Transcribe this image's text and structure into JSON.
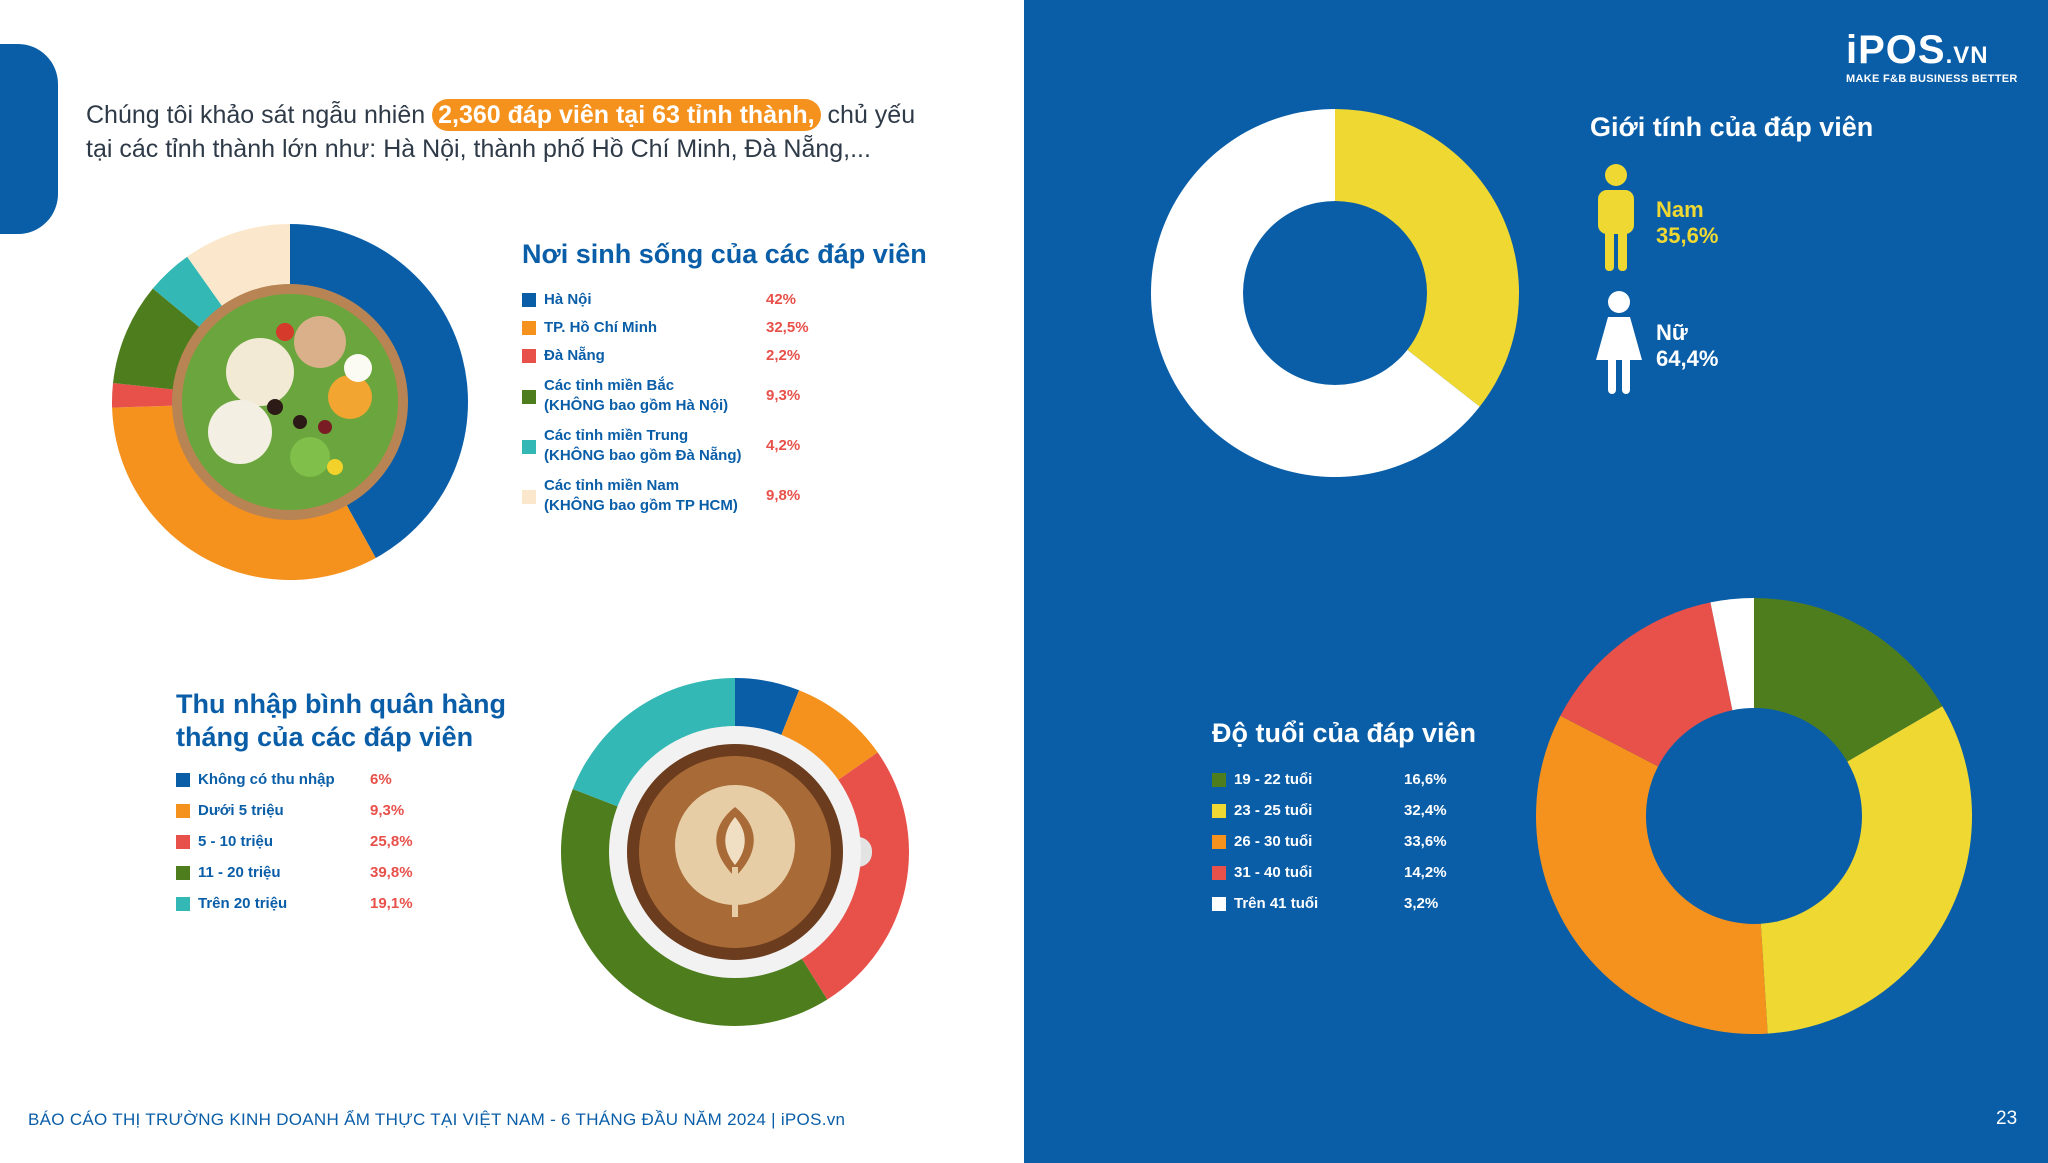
{
  "intro": {
    "before": "Chúng tôi khảo sát ngẫu nhiên ",
    "highlight": "2,360 đáp viên tại 63 tỉnh thành,",
    "after": " chủ yếu tại các tỉnh thành lớn như: Hà Nội, thành phố Hồ Chí Minh, Đà Nẵng,..."
  },
  "logo": {
    "brand": "iPOS",
    "suffix": ".VN",
    "tagline": "MAKE F&B BUSINESS BETTER"
  },
  "footer": {
    "text": "BÁO CÁO THỊ TRƯỜNG KINH DOANH ẨM THỰC TẠI VIỆT NAM - 6 THÁNG ĐẦU NĂM 2024 | iPOS.vn",
    "page": "23"
  },
  "gender_labels": {
    "male": "Nam",
    "male_value": "35,6%",
    "female": "Nữ",
    "female_value": "64,4%"
  },
  "chart_data": [
    {
      "type": "pie",
      "title": "Nơi sinh sống của các đáp viên",
      "categories": [
        "Hà Nội",
        "TP. Hồ Chí Minh",
        "Đà Nẵng",
        "Các tỉnh miền Bắc\n(KHÔNG bao gồm Hà Nội)",
        "Các tỉnh miền Trung\n(KHÔNG bao gồm Đà Nẵng)",
        "Các tỉnh miền Nam\n(KHÔNG bao gồm TP HCM)"
      ],
      "values": [
        42,
        32.5,
        2.2,
        9.3,
        4.2,
        9.8
      ],
      "labels": [
        "42%",
        "32,5%",
        "2,2%",
        "9,3%",
        "4,2%",
        "9,8%"
      ],
      "colors": [
        "#0a5ea8",
        "#f5921e",
        "#e8504a",
        "#4e7d1e",
        "#33b8b5",
        "#fbe8cc"
      ]
    },
    {
      "type": "pie",
      "title": "Thu nhập bình quân hàng tháng của các đáp viên",
      "categories": [
        "Không có thu nhập",
        "Dưới 5 triệu",
        "5 - 10 triệu",
        "11 - 20 triệu",
        "Trên 20 triệu"
      ],
      "values": [
        6,
        9.3,
        25.8,
        39.8,
        19.1
      ],
      "labels": [
        "6%",
        "9,3%",
        "25,8%",
        "39,8%",
        "19,1%"
      ],
      "colors": [
        "#0a5ea8",
        "#f5921e",
        "#e8504a",
        "#4e7d1e",
        "#33b8b5"
      ]
    },
    {
      "type": "pie",
      "title": "Giới tính của đáp viên",
      "categories": [
        "Nam",
        "Nữ"
      ],
      "values": [
        35.6,
        64.4
      ],
      "labels": [
        "35,6%",
        "64,4%"
      ],
      "colors": [
        "#f0d832",
        "#ffffff"
      ]
    },
    {
      "type": "pie",
      "title": "Độ tuổi của đáp viên",
      "categories": [
        "19 - 22 tuổi",
        "23 - 25 tuổi",
        "26 - 30 tuổi",
        "31 - 40 tuổi",
        "Trên 41 tuổi"
      ],
      "values": [
        16.6,
        32.4,
        33.6,
        14.2,
        3.2
      ],
      "labels": [
        "16,6%",
        "32,4%",
        "33,6%",
        "14,2%",
        "3,2%"
      ],
      "colors": [
        "#4e7d1e",
        "#f0d832",
        "#f5921e",
        "#e8504a",
        "#ffffff"
      ]
    }
  ]
}
